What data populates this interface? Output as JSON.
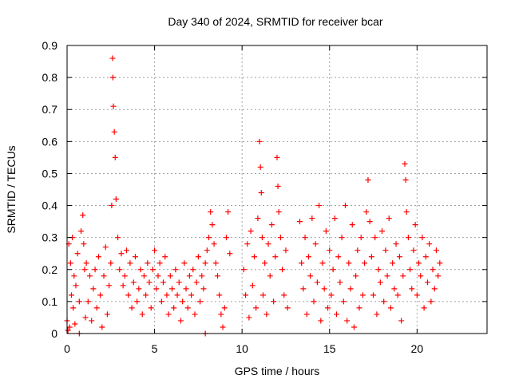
{
  "chart_data": {
    "type": "scatter",
    "title": "Day 340 of 2024, SRMTID for receiver bcar",
    "xlabel": "GPS time / hours",
    "ylabel": "SRMTID / TECUs",
    "xlim": [
      0,
      24
    ],
    "ylim": [
      0,
      0.9
    ],
    "xticks": [
      0,
      5,
      10,
      15,
      20
    ],
    "yticks": [
      0,
      0.1,
      0.2,
      0.3,
      0.4,
      0.5,
      0.6,
      0.7,
      0.8,
      0.9
    ],
    "xtick_labels": [
      "0",
      "5",
      "10",
      "15",
      "20"
    ],
    "ytick_labels": [
      "0",
      "0.1",
      "0.2",
      "0.3",
      "0.4",
      "0.5",
      "0.6",
      "0.7",
      "0.8",
      "0.9"
    ],
    "grid": true,
    "marker": "+",
    "marker_color": "#ff0000",
    "series": [
      {
        "name": "SRMTID",
        "x": [
          0.0,
          0.05,
          0.1,
          0.15,
          0.2,
          0.25,
          0.3,
          0.35,
          0.4,
          0.45,
          0.5,
          0.6,
          0.7,
          0.8,
          0.9,
          0.95,
          1.0,
          1.05,
          1.1,
          1.2,
          1.3,
          1.4,
          1.5,
          1.6,
          1.7,
          1.8,
          1.9,
          2.0,
          2.1,
          2.2,
          2.3,
          2.4,
          2.5,
          2.55,
          2.6,
          2.62,
          2.65,
          2.7,
          2.75,
          2.8,
          2.9,
          3.0,
          3.1,
          3.2,
          3.3,
          3.4,
          3.5,
          3.6,
          3.7,
          3.8,
          3.9,
          4.0,
          4.1,
          4.2,
          4.3,
          4.4,
          4.5,
          4.6,
          4.7,
          4.8,
          4.9,
          5.0,
          5.1,
          5.2,
          5.3,
          5.4,
          5.5,
          5.6,
          5.7,
          5.8,
          5.9,
          6.0,
          6.1,
          6.2,
          6.3,
          6.4,
          6.5,
          6.6,
          6.7,
          6.8,
          6.9,
          7.0,
          7.1,
          7.2,
          7.3,
          7.4,
          7.5,
          7.6,
          7.7,
          7.8,
          7.9,
          8.0,
          8.1,
          8.2,
          8.3,
          8.4,
          8.5,
          8.6,
          8.7,
          8.8,
          8.9,
          9.0,
          9.1,
          9.2,
          9.3,
          10.1,
          10.2,
          10.3,
          10.4,
          10.5,
          10.6,
          10.7,
          10.8,
          10.9,
          11.0,
          11.05,
          11.1,
          11.15,
          11.2,
          11.3,
          11.4,
          11.5,
          11.6,
          11.7,
          11.8,
          11.9,
          12.0,
          12.05,
          12.1,
          12.2,
          12.3,
          12.4,
          12.5,
          12.6,
          13.3,
          13.4,
          13.5,
          13.6,
          13.7,
          13.8,
          13.9,
          14.0,
          14.1,
          14.2,
          14.3,
          14.4,
          14.5,
          14.6,
          14.7,
          14.8,
          14.9,
          15.0,
          15.1,
          15.2,
          15.3,
          15.4,
          15.5,
          15.6,
          15.7,
          15.8,
          15.9,
          16.0,
          16.1,
          16.2,
          16.3,
          16.4,
          16.5,
          16.6,
          16.7,
          16.8,
          16.9,
          17.0,
          17.1,
          17.2,
          17.3,
          17.4,
          17.5,
          17.6,
          17.7,
          17.8,
          17.9,
          18.0,
          18.1,
          18.2,
          18.3,
          18.4,
          18.5,
          18.6,
          18.7,
          18.8,
          18.9,
          19.0,
          19.1,
          19.2,
          19.3,
          19.35,
          19.4,
          19.5,
          19.6,
          19.7,
          19.8,
          19.9,
          20.0,
          20.1,
          20.2,
          20.3,
          20.4,
          20.5,
          20.6,
          20.7,
          20.8,
          20.9,
          21.0,
          21.1,
          21.2,
          21.3,
          0.7,
          7.9
        ],
        "y": [
          0.04,
          0.01,
          0.28,
          0.02,
          0.22,
          0.12,
          0.3,
          0.08,
          0.18,
          0.03,
          0.15,
          0.25,
          0.1,
          0.32,
          0.37,
          0.28,
          0.2,
          0.05,
          0.22,
          0.1,
          0.18,
          0.04,
          0.14,
          0.2,
          0.08,
          0.24,
          0.12,
          0.02,
          0.18,
          0.27,
          0.06,
          0.15,
          0.22,
          0.4,
          0.86,
          0.8,
          0.71,
          0.63,
          0.55,
          0.42,
          0.3,
          0.2,
          0.25,
          0.15,
          0.18,
          0.26,
          0.12,
          0.22,
          0.08,
          0.16,
          0.24,
          0.1,
          0.14,
          0.2,
          0.06,
          0.18,
          0.12,
          0.22,
          0.16,
          0.08,
          0.2,
          0.26,
          0.14,
          0.18,
          0.22,
          0.1,
          0.16,
          0.24,
          0.12,
          0.06,
          0.18,
          0.14,
          0.08,
          0.2,
          0.12,
          0.16,
          0.04,
          0.1,
          0.22,
          0.14,
          0.08,
          0.18,
          0.12,
          0.2,
          0.06,
          0.16,
          0.24,
          0.1,
          0.18,
          0.14,
          0.22,
          0.26,
          0.3,
          0.38,
          0.34,
          0.28,
          0.22,
          0.18,
          0.12,
          0.06,
          0.02,
          0.08,
          0.3,
          0.38,
          0.25,
          0.2,
          0.12,
          0.28,
          0.05,
          0.32,
          0.15,
          0.24,
          0.08,
          0.36,
          0.6,
          0.52,
          0.44,
          0.3,
          0.12,
          0.22,
          0.06,
          0.28,
          0.18,
          0.34,
          0.1,
          0.24,
          0.55,
          0.46,
          0.38,
          0.3,
          0.2,
          0.12,
          0.26,
          0.08,
          0.35,
          0.22,
          0.14,
          0.3,
          0.06,
          0.24,
          0.18,
          0.36,
          0.1,
          0.28,
          0.16,
          0.4,
          0.04,
          0.22,
          0.14,
          0.32,
          0.08,
          0.26,
          0.12,
          0.2,
          0.36,
          0.06,
          0.24,
          0.16,
          0.3,
          0.1,
          0.4,
          0.04,
          0.22,
          0.14,
          0.34,
          0.02,
          0.18,
          0.26,
          0.08,
          0.3,
          0.12,
          0.22,
          0.38,
          0.48,
          0.35,
          0.24,
          0.12,
          0.3,
          0.06,
          0.2,
          0.16,
          0.32,
          0.1,
          0.26,
          0.18,
          0.36,
          0.08,
          0.22,
          0.14,
          0.28,
          0.12,
          0.24,
          0.04,
          0.18,
          0.53,
          0.48,
          0.38,
          0.3,
          0.2,
          0.14,
          0.26,
          0.34,
          0.12,
          0.22,
          0.18,
          0.3,
          0.08,
          0.24,
          0.16,
          0.28,
          0.1,
          0.2,
          0.14,
          0.26,
          0.18,
          0.22,
          0.0,
          0.0
        ]
      }
    ]
  }
}
